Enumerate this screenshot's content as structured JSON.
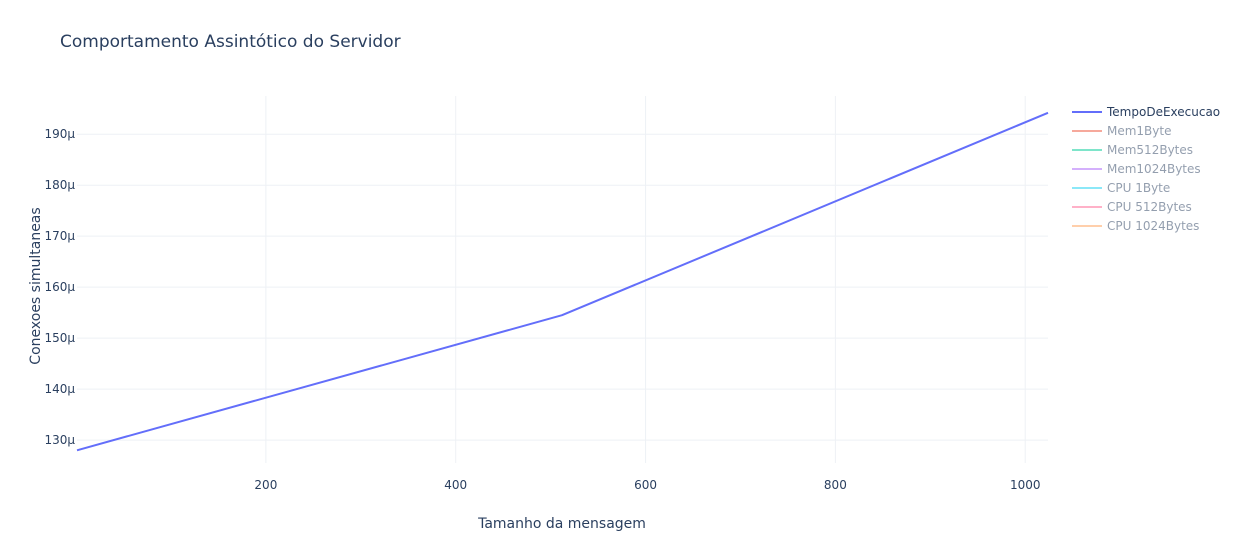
{
  "chart_data": {
    "type": "line",
    "title": "Comportamento Assintótico do Servidor",
    "xlabel": "Tamanho da mensagem",
    "ylabel": "Conexoes simultaneas",
    "xlim": [
      1,
      1024
    ],
    "ylim": [
      125.5,
      197.5
    ],
    "x_ticks": [
      200,
      400,
      600,
      800,
      1000
    ],
    "x_tick_labels": [
      "200",
      "400",
      "600",
      "800",
      "1000"
    ],
    "y_ticks": [
      130,
      140,
      150,
      160,
      170,
      180,
      190
    ],
    "y_tick_labels": [
      "130µ",
      "140µ",
      "150µ",
      "160µ",
      "170µ",
      "180µ",
      "190µ"
    ],
    "grid": true,
    "legend_position": "right",
    "series": [
      {
        "name": "TempoDeExecucao",
        "color": "#636efa",
        "visible": true,
        "x": [
          1,
          512,
          1024
        ],
        "y": [
          128,
          154.5,
          194.2
        ]
      },
      {
        "name": "Mem1Byte",
        "color": "#ef553b",
        "visible": false,
        "x": [],
        "y": []
      },
      {
        "name": "Mem512Bytes",
        "color": "#00cc96",
        "visible": false,
        "x": [],
        "y": []
      },
      {
        "name": "Mem1024Bytes",
        "color": "#ab63fa",
        "visible": false,
        "x": [],
        "y": []
      },
      {
        "name": "CPU 1Byte",
        "color": "#19d3f3",
        "visible": false,
        "x": [],
        "y": []
      },
      {
        "name": "CPU 512Bytes",
        "color": "#ff6692",
        "visible": false,
        "x": [],
        "y": []
      },
      {
        "name": "CPU 1024Bytes",
        "color": "#ffa15a",
        "visible": false,
        "x": [],
        "y": []
      }
    ]
  }
}
